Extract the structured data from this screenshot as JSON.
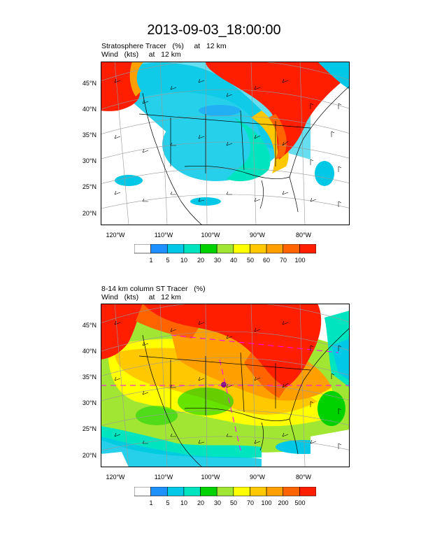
{
  "title": "2013-09-03_18:00:00",
  "panel1": {
    "line1": "Stratosphere Tracer   (%)     at   12 km",
    "line2": "Wind   (kts)     at   12 km",
    "lat_labels": [
      "45°N",
      "40°N",
      "35°N",
      "30°N",
      "25°N",
      "20°N"
    ],
    "lon_labels": [
      "120°W",
      "110°W",
      "100°W",
      "90°W",
      "80°W"
    ],
    "colorbar_labels": [
      "1",
      "5",
      "10",
      "20",
      "30",
      "40",
      "50",
      "60",
      "70",
      "100"
    ]
  },
  "panel2": {
    "line1": "8-14 km column ST Tracer   (%)",
    "line2": "Wind   (kts)     at   12 km",
    "lat_labels": [
      "45°N",
      "40°N",
      "35°N",
      "30°N",
      "25°N",
      "20°N"
    ],
    "lon_labels": [
      "120°W",
      "110°W",
      "100°W",
      "90°W",
      "80°W"
    ],
    "colorbar_labels": [
      "1",
      "5",
      "10",
      "20",
      "30",
      "50",
      "70",
      "100",
      "200",
      "500"
    ]
  },
  "colorbar_colors": [
    "#ffffff",
    "#1e90ff",
    "#00c8e6",
    "#00e5c0",
    "#00d200",
    "#a0e632",
    "#ffff00",
    "#ffc800",
    "#ffa000",
    "#ff6400",
    "#ff1e00"
  ]
}
